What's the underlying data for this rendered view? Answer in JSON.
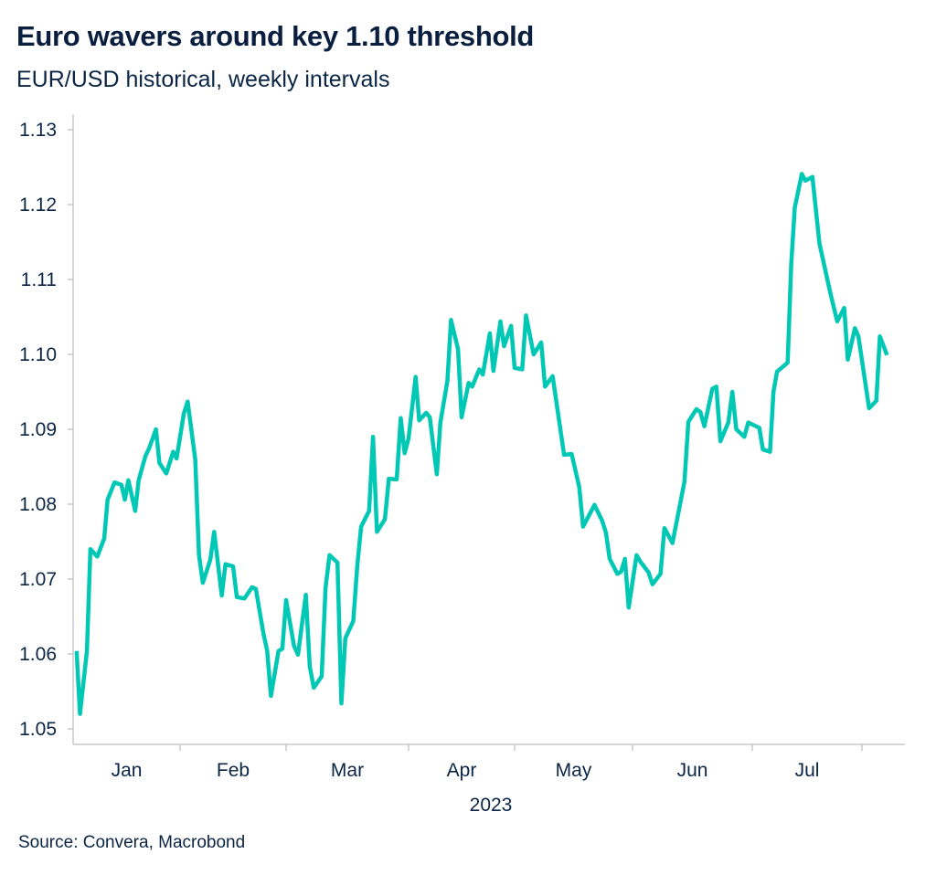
{
  "title": "Euro wavers around key 1.10 threshold",
  "subtitle": "EUR/USD historical, weekly intervals",
  "source": "Source: Convera, Macrobond",
  "colors": {
    "line": "#00c8b4",
    "axis": "#c8c8c8",
    "text": "#0b2545"
  },
  "chart_data": {
    "type": "line",
    "title": "Euro wavers around key 1.10 threshold",
    "subtitle": "EUR/USD historical, weekly intervals",
    "xlabel": "2023",
    "ylabel": "",
    "ylim": [
      1.05,
      1.13
    ],
    "xlim": [
      "2023-01-01",
      "2023-08-13"
    ],
    "yticks": [
      "1.05",
      "1.06",
      "1.07",
      "1.08",
      "1.09",
      "1.10",
      "1.11",
      "1.12",
      "1.13"
    ],
    "xticks": [
      "Jan",
      "Feb",
      "Mar",
      "Apr",
      "May",
      "Jun",
      "Jul"
    ],
    "grid": false,
    "series": [
      {
        "points": [
          [
            "2023-01-02",
            1.0604
          ],
          [
            "2023-01-03",
            1.052
          ],
          [
            "2023-01-05",
            1.0604
          ],
          [
            "2023-01-06",
            1.074
          ],
          [
            "2023-01-08",
            1.073
          ],
          [
            "2023-01-10",
            1.0754
          ],
          [
            "2023-01-11",
            1.0806
          ],
          [
            "2023-01-13",
            1.0829
          ],
          [
            "2023-01-15",
            1.0826
          ],
          [
            "2023-01-16",
            1.0806
          ],
          [
            "2023-01-17",
            1.0832
          ],
          [
            "2023-01-19",
            1.0791
          ],
          [
            "2023-01-20",
            1.0832
          ],
          [
            "2023-01-22",
            1.0865
          ],
          [
            "2023-01-23",
            1.0874
          ],
          [
            "2023-01-25",
            1.09
          ],
          [
            "2023-01-26",
            1.0855
          ],
          [
            "2023-01-28",
            1.0841
          ],
          [
            "2023-01-30",
            1.087
          ],
          [
            "2023-01-31",
            1.0861
          ],
          [
            "2023-02-02",
            1.0921
          ],
          [
            "2023-02-03",
            1.0937
          ],
          [
            "2023-02-05",
            1.086
          ],
          [
            "2023-02-06",
            1.0732
          ],
          [
            "2023-02-07",
            1.0695
          ],
          [
            "2023-02-09",
            1.0726
          ],
          [
            "2023-02-10",
            1.0763
          ],
          [
            "2023-02-12",
            1.0678
          ],
          [
            "2023-02-13",
            1.072
          ],
          [
            "2023-02-15",
            1.0717
          ],
          [
            "2023-02-16",
            1.0676
          ],
          [
            "2023-02-18",
            1.0674
          ],
          [
            "2023-02-20",
            1.0689
          ],
          [
            "2023-02-21",
            1.0687
          ],
          [
            "2023-02-23",
            1.0628
          ],
          [
            "2023-02-24",
            1.0604
          ],
          [
            "2023-02-25",
            1.0544
          ],
          [
            "2023-02-27",
            1.0604
          ],
          [
            "2023-02-28",
            1.0607
          ],
          [
            "2023-03-01",
            1.0672
          ],
          [
            "2023-03-03",
            1.0611
          ],
          [
            "2023-03-04",
            1.0599
          ],
          [
            "2023-03-06",
            1.0679
          ],
          [
            "2023-03-07",
            1.0583
          ],
          [
            "2023-03-08",
            1.0555
          ],
          [
            "2023-03-10",
            1.057
          ],
          [
            "2023-03-11",
            1.0689
          ],
          [
            "2023-03-12",
            1.0732
          ],
          [
            "2023-03-14",
            1.0722
          ],
          [
            "2023-03-15",
            1.0534
          ],
          [
            "2023-03-16",
            1.0621
          ],
          [
            "2023-03-18",
            1.0644
          ],
          [
            "2023-03-19",
            1.0717
          ],
          [
            "2023-03-20",
            1.077
          ],
          [
            "2023-03-22",
            1.0791
          ],
          [
            "2023-03-23",
            1.089
          ],
          [
            "2023-03-24",
            1.0763
          ],
          [
            "2023-03-26",
            1.078
          ],
          [
            "2023-03-27",
            1.0834
          ],
          [
            "2023-03-29",
            1.0833
          ],
          [
            "2023-03-30",
            1.0915
          ],
          [
            "2023-03-31",
            1.0868
          ],
          [
            "2023-04-01",
            1.0888
          ],
          [
            "2023-04-03",
            1.097
          ],
          [
            "2023-04-04",
            1.0912
          ],
          [
            "2023-04-06",
            1.0922
          ],
          [
            "2023-04-07",
            1.0916
          ],
          [
            "2023-04-09",
            1.084
          ],
          [
            "2023-04-10",
            1.0909
          ],
          [
            "2023-04-12",
            1.0965
          ],
          [
            "2023-04-13",
            1.1046
          ],
          [
            "2023-04-15",
            1.1007
          ],
          [
            "2023-04-16",
            1.0916
          ],
          [
            "2023-04-18",
            1.0962
          ],
          [
            "2023-04-19",
            1.0957
          ],
          [
            "2023-04-21",
            1.098
          ],
          [
            "2023-04-22",
            1.0973
          ],
          [
            "2023-04-24",
            1.1028
          ],
          [
            "2023-04-25",
            1.0978
          ],
          [
            "2023-04-27",
            1.1044
          ],
          [
            "2023-04-28",
            1.1011
          ],
          [
            "2023-04-30",
            1.1038
          ],
          [
            "2023-05-01",
            1.0982
          ],
          [
            "2023-05-03",
            1.098
          ],
          [
            "2023-05-04",
            1.1052
          ],
          [
            "2023-05-06",
            1.1
          ],
          [
            "2023-05-08",
            1.1016
          ],
          [
            "2023-05-09",
            1.0957
          ],
          [
            "2023-05-11",
            1.0971
          ],
          [
            "2023-05-14",
            1.0866
          ],
          [
            "2023-05-16",
            1.0867
          ],
          [
            "2023-05-18",
            1.0823
          ],
          [
            "2023-05-19",
            1.077
          ],
          [
            "2023-05-22",
            1.0799
          ],
          [
            "2023-05-24",
            1.0778
          ],
          [
            "2023-05-25",
            1.0762
          ],
          [
            "2023-05-26",
            1.0727
          ],
          [
            "2023-05-28",
            1.0707
          ],
          [
            "2023-05-29",
            1.071
          ],
          [
            "2023-05-30",
            1.0727
          ],
          [
            "2023-05-31",
            1.0662
          ],
          [
            "2023-06-02",
            1.0732
          ],
          [
            "2023-06-03",
            1.0723
          ],
          [
            "2023-06-05",
            1.0709
          ],
          [
            "2023-06-06",
            1.0693
          ],
          [
            "2023-06-08",
            1.0707
          ],
          [
            "2023-06-09",
            1.0768
          ],
          [
            "2023-06-11",
            1.0748
          ],
          [
            "2023-06-14",
            1.083
          ],
          [
            "2023-06-15",
            1.091
          ],
          [
            "2023-06-17",
            1.0927
          ],
          [
            "2023-06-18",
            1.0923
          ],
          [
            "2023-06-19",
            1.0904
          ],
          [
            "2023-06-21",
            1.0954
          ],
          [
            "2023-06-22",
            1.0957
          ],
          [
            "2023-06-23",
            1.0884
          ],
          [
            "2023-06-25",
            1.0909
          ],
          [
            "2023-06-26",
            1.095
          ],
          [
            "2023-06-27",
            1.09
          ],
          [
            "2023-06-29",
            1.089
          ],
          [
            "2023-06-30",
            1.0909
          ],
          [
            "2023-07-03",
            1.0902
          ],
          [
            "2023-07-04",
            1.0873
          ],
          [
            "2023-07-06",
            1.087
          ],
          [
            "2023-07-07",
            1.095
          ],
          [
            "2023-07-08",
            1.0977
          ],
          [
            "2023-07-11",
            1.0989
          ],
          [
            "2023-07-12",
            1.112
          ],
          [
            "2023-07-13",
            1.1196
          ],
          [
            "2023-07-15",
            1.1241
          ],
          [
            "2023-07-16",
            1.1232
          ],
          [
            "2023-07-18",
            1.1237
          ],
          [
            "2023-07-20",
            1.1148
          ],
          [
            "2023-07-23",
            1.1083
          ],
          [
            "2023-07-25",
            1.1044
          ],
          [
            "2023-07-27",
            1.1062
          ],
          [
            "2023-07-28",
            1.0993
          ],
          [
            "2023-07-30",
            1.1035
          ],
          [
            "2023-07-31",
            1.1024
          ],
          [
            "2023-08-03",
            1.0928
          ],
          [
            "2023-08-05",
            1.0938
          ],
          [
            "2023-08-06",
            1.1024
          ],
          [
            "2023-08-08",
            1.0999
          ]
        ]
      }
    ]
  }
}
